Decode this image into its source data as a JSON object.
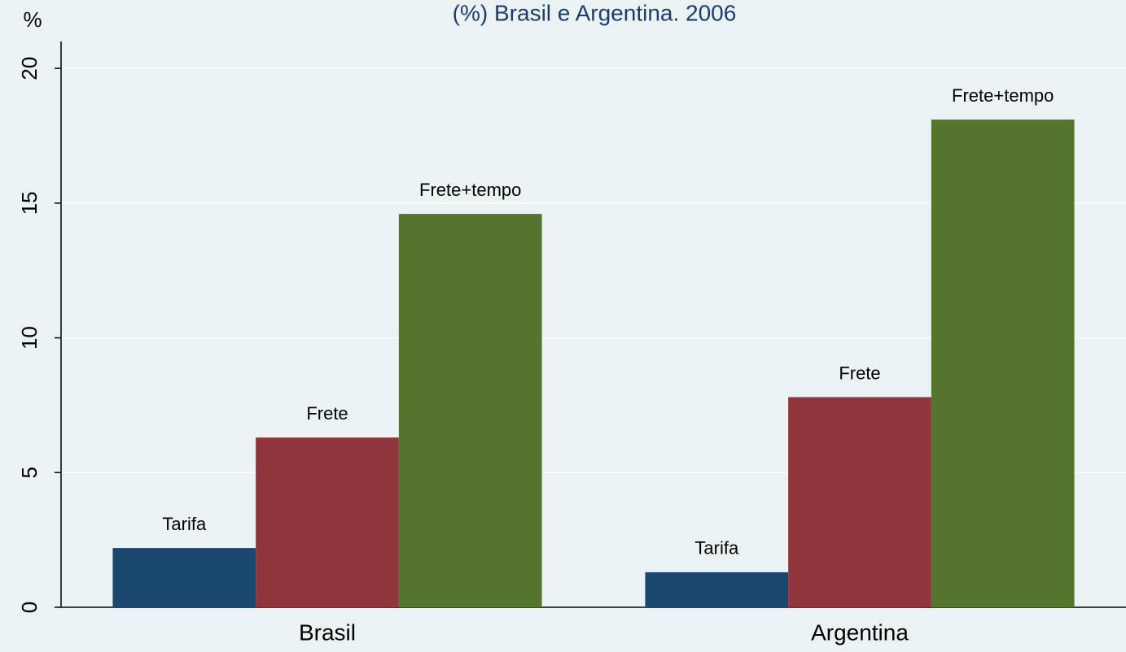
{
  "chart_data": {
    "type": "bar",
    "title": "(%) Brasil e Argentina. 2006",
    "y_label": "%",
    "categories": [
      "Brasil",
      "Argentina"
    ],
    "series": [
      {
        "name": "Tarifa",
        "color": "#1a476f",
        "values": [
          2.2,
          1.3
        ]
      },
      {
        "name": "Frete",
        "color": "#90353b",
        "values": [
          6.3,
          7.8
        ]
      },
      {
        "name": "Frete+tempo",
        "color": "#55752f",
        "values": [
          14.6,
          18.1
        ]
      }
    ],
    "ylim": [
      0,
      21
    ],
    "yticks": [
      0,
      5,
      10,
      15,
      20
    ],
    "grid": true
  }
}
